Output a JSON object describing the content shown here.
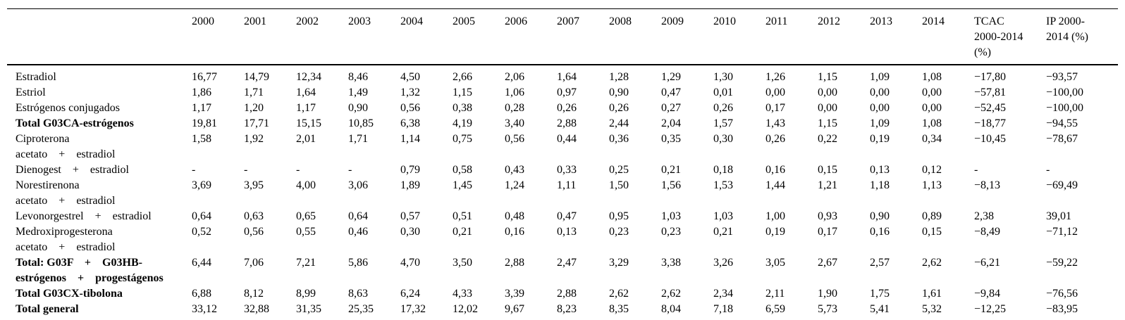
{
  "chart_data": {
    "type": "table",
    "title": "",
    "header": {
      "years": [
        "2000",
        "2001",
        "2002",
        "2003",
        "2004",
        "2005",
        "2006",
        "2007",
        "2008",
        "2009",
        "2010",
        "2011",
        "2012",
        "2013",
        "2014"
      ],
      "tcac_lines": [
        "TCAC",
        "2000-2014",
        "(%)"
      ],
      "ip_lines": [
        "IP 2000-",
        "2014 (%)"
      ]
    },
    "rows": [
      {
        "label_lines": [
          "Estradiol"
        ],
        "bold": false,
        "values": [
          "16,77",
          "14,79",
          "12,34",
          "8,46",
          "4,50",
          "2,66",
          "2,06",
          "1,64",
          "1,28",
          "1,29",
          "1,30",
          "1,26",
          "1,15",
          "1,09",
          "1,08",
          "−17,80",
          "−93,57"
        ]
      },
      {
        "label_lines": [
          "Estriol"
        ],
        "bold": false,
        "values": [
          "1,86",
          "1,71",
          "1,64",
          "1,49",
          "1,32",
          "1,15",
          "1,06",
          "0,97",
          "0,90",
          "0,47",
          "0,01",
          "0,00",
          "0,00",
          "0,00",
          "0,00",
          "−57,81",
          "−100,00"
        ]
      },
      {
        "label_lines": [
          "Estrógenos conjugados"
        ],
        "bold": false,
        "values": [
          "1,17",
          "1,20",
          "1,17",
          "0,90",
          "0,56",
          "0,38",
          "0,28",
          "0,26",
          "0,26",
          "0,27",
          "0,26",
          "0,17",
          "0,00",
          "0,00",
          "0,00",
          "−52,45",
          "−100,00"
        ]
      },
      {
        "label_lines": [
          "Total G03CA-estrógenos"
        ],
        "bold": true,
        "values": [
          "19,81",
          "17,71",
          "15,15",
          "10,85",
          "6,38",
          "4,19",
          "3,40",
          "2,88",
          "2,44",
          "2,04",
          "1,57",
          "1,43",
          "1,15",
          "1,09",
          "1,08",
          "−18,77",
          "−94,55"
        ]
      },
      {
        "label_lines": [
          "Ciproterona",
          "acetato    +    estradiol"
        ],
        "bold": false,
        "values": [
          "1,58",
          "1,92",
          "2,01",
          "1,71",
          "1,14",
          "0,75",
          "0,56",
          "0,44",
          "0,36",
          "0,35",
          "0,30",
          "0,26",
          "0,22",
          "0,19",
          "0,34",
          "−10,45",
          "−78,67"
        ]
      },
      {
        "label_lines": [
          "Dienogest    +    estradiol"
        ],
        "bold": false,
        "values": [
          "-",
          "-",
          "-",
          "-",
          "0,79",
          "0,58",
          "0,43",
          "0,33",
          "0,25",
          "0,21",
          "0,18",
          "0,16",
          "0,15",
          "0,13",
          "0,12",
          "-",
          "-"
        ]
      },
      {
        "label_lines": [
          "Norestirenona",
          "acetato    +    estradiol"
        ],
        "bold": false,
        "values": [
          "3,69",
          "3,95",
          "4,00",
          "3,06",
          "1,89",
          "1,45",
          "1,24",
          "1,11",
          "1,50",
          "1,56",
          "1,53",
          "1,44",
          "1,21",
          "1,18",
          "1,13",
          "−8,13",
          "−69,49"
        ]
      },
      {
        "label_lines": [
          "Levonorgestrel    +    estradiol"
        ],
        "bold": false,
        "values": [
          "0,64",
          "0,63",
          "0,65",
          "0,64",
          "0,57",
          "0,51",
          "0,48",
          "0,47",
          "0,95",
          "1,03",
          "1,03",
          "1,00",
          "0,93",
          "0,90",
          "0,89",
          "2,38",
          "39,01"
        ]
      },
      {
        "label_lines": [
          "Medroxiprogesterona",
          "acetato    +    estradiol"
        ],
        "bold": false,
        "values": [
          "0,52",
          "0,56",
          "0,55",
          "0,46",
          "0,30",
          "0,21",
          "0,16",
          "0,13",
          "0,23",
          "0,23",
          "0,21",
          "0,19",
          "0,17",
          "0,16",
          "0,15",
          "−8,49",
          "−71,12"
        ]
      },
      {
        "label_lines": [
          "Total: G03F    +    G03HB-",
          "estrógenos    +    progestágenos"
        ],
        "bold": true,
        "values": [
          "6,44",
          "7,06",
          "7,21",
          "5,86",
          "4,70",
          "3,50",
          "2,88",
          "2,47",
          "3,29",
          "3,38",
          "3,26",
          "3,05",
          "2,67",
          "2,57",
          "2,62",
          "−6,21",
          "−59,22"
        ]
      },
      {
        "label_lines": [
          "Total G03CX-tibolona"
        ],
        "bold": true,
        "values": [
          "6,88",
          "8,12",
          "8,99",
          "8,63",
          "6,24",
          "4,33",
          "3,39",
          "2,88",
          "2,62",
          "2,62",
          "2,34",
          "2,11",
          "1,90",
          "1,75",
          "1,61",
          "−9,84",
          "−76,56"
        ]
      },
      {
        "label_lines": [
          "Total general"
        ],
        "bold": true,
        "values": [
          "33,12",
          "32,88",
          "31,35",
          "25,35",
          "17,32",
          "12,02",
          "9,67",
          "8,23",
          "8,35",
          "8,04",
          "7,18",
          "6,59",
          "5,73",
          "5,41",
          "5,32",
          "−12,25",
          "−83,95"
        ]
      }
    ]
  }
}
